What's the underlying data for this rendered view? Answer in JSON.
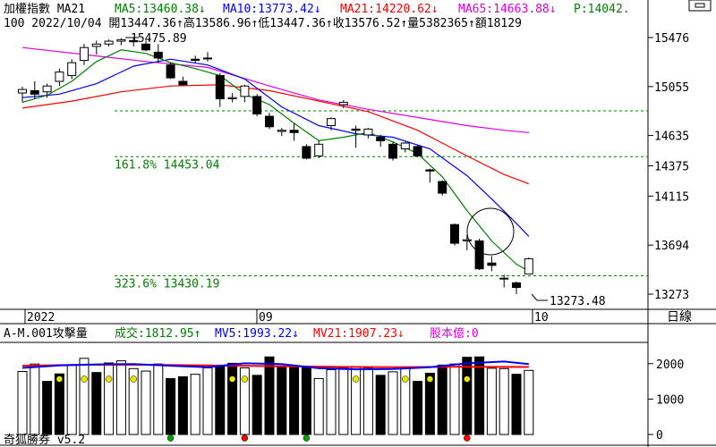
{
  "header": {
    "title": "加權指數 MA21",
    "ma5": "MA5:13460.38↓",
    "ma10": "MA10:13773.42↓",
    "ma21": "MA21:14220.62↓",
    "ma65": "MA65:14663.88↓",
    "p": "P:14042.",
    "line2": "100 2022/10/04 開13447.36↑高13586.96↑低13447.36↑收13576.52↑量5382365↑額18129"
  },
  "colors": {
    "ma5": "#008000",
    "ma10": "#0000ff",
    "ma21": "#ff0000",
    "ma65": "#e000e0",
    "fib": "#008000",
    "vol_ma5": "#0000ff",
    "vol_ma21": "#ff0000",
    "label": "#c00000"
  },
  "price_panel": {
    "annotations": {
      "high": "15475.89",
      "low": "13273.48"
    },
    "fib_levels": [
      {
        "label": "161.8% 14453.04",
        "value": 14453.04
      },
      {
        "label": "323.6% 13430.19",
        "value": 13430.19
      }
    ],
    "x_labels": [
      "2022",
      "09",
      "10"
    ],
    "timeframe": "日線"
  },
  "volume_panel": {
    "title": "A-M.001攻擊量",
    "vol": "成交:1812.95↑",
    "mv5": "MV5:1993.22↓",
    "mv21": "MV21:1907.23↓",
    "shares": "股本億:0",
    "version": "奇狐勝券 v5.2"
  },
  "chart_data": {
    "type": "candlestick",
    "y_ticks": [
      15476,
      15055,
      14635,
      14375,
      14115,
      13694,
      13273
    ],
    "volume_ticks": [
      2000,
      1000,
      0
    ],
    "volume_ylim": [
      0,
      2600
    ],
    "candles": [
      {
        "o": 15000,
        "h": 15055,
        "l": 14920,
        "c": 15030
      },
      {
        "o": 15020,
        "h": 15100,
        "l": 14950,
        "c": 14990
      },
      {
        "o": 15010,
        "h": 15080,
        "l": 14960,
        "c": 15060
      },
      {
        "o": 15100,
        "h": 15210,
        "l": 15060,
        "c": 15180
      },
      {
        "o": 15150,
        "h": 15290,
        "l": 15120,
        "c": 15260
      },
      {
        "o": 15280,
        "h": 15420,
        "l": 15240,
        "c": 15390
      },
      {
        "o": 15400,
        "h": 15450,
        "l": 15330,
        "c": 15420
      },
      {
        "o": 15420,
        "h": 15460,
        "l": 15400,
        "c": 15445
      },
      {
        "o": 15445,
        "h": 15470,
        "l": 15410,
        "c": 15458
      },
      {
        "o": 15450,
        "h": 15476,
        "l": 15400,
        "c": 15440
      },
      {
        "o": 15420,
        "h": 15450,
        "l": 15360,
        "c": 15370
      },
      {
        "o": 15350,
        "h": 15420,
        "l": 15260,
        "c": 15300
      },
      {
        "o": 15240,
        "h": 15260,
        "l": 15120,
        "c": 15130
      },
      {
        "o": 15100,
        "h": 15140,
        "l": 15060,
        "c": 15070
      },
      {
        "o": 15290,
        "h": 15320,
        "l": 15260,
        "c": 15280
      },
      {
        "o": 15300,
        "h": 15350,
        "l": 15270,
        "c": 15300
      },
      {
        "o": 15150,
        "h": 15170,
        "l": 14880,
        "c": 14950
      },
      {
        "o": 14950,
        "h": 15000,
        "l": 14920,
        "c": 14960
      },
      {
        "o": 14970,
        "h": 15070,
        "l": 14920,
        "c": 15060
      },
      {
        "o": 14970,
        "h": 14990,
        "l": 14800,
        "c": 14820
      },
      {
        "o": 14800,
        "h": 14830,
        "l": 14690,
        "c": 14710
      },
      {
        "o": 14670,
        "h": 14700,
        "l": 14630,
        "c": 14680
      },
      {
        "o": 14680,
        "h": 14740,
        "l": 14590,
        "c": 14660
      },
      {
        "o": 14540,
        "h": 14560,
        "l": 14430,
        "c": 14440
      },
      {
        "o": 14460,
        "h": 14590,
        "l": 14440,
        "c": 14560
      },
      {
        "o": 14720,
        "h": 14790,
        "l": 14680,
        "c": 14780
      },
      {
        "o": 14900,
        "h": 14940,
        "l": 14870,
        "c": 14920
      },
      {
        "o": 14690,
        "h": 14720,
        "l": 14530,
        "c": 14680
      },
      {
        "o": 14640,
        "h": 14700,
        "l": 14610,
        "c": 14690
      },
      {
        "o": 14620,
        "h": 14640,
        "l": 14540,
        "c": 14590
      },
      {
        "o": 14560,
        "h": 14580,
        "l": 14420,
        "c": 14440
      },
      {
        "o": 14520,
        "h": 14580,
        "l": 14490,
        "c": 14570
      },
      {
        "o": 14540,
        "h": 14550,
        "l": 14450,
        "c": 14460
      },
      {
        "o": 14340,
        "h": 14350,
        "l": 14230,
        "c": 14330
      },
      {
        "o": 14240,
        "h": 14250,
        "l": 14120,
        "c": 14140
      },
      {
        "o": 13870,
        "h": 13880,
        "l": 13690,
        "c": 13710
      },
      {
        "o": 13730,
        "h": 13780,
        "l": 13650,
        "c": 13740
      },
      {
        "o": 13730,
        "h": 13750,
        "l": 13480,
        "c": 13490
      },
      {
        "o": 13540,
        "h": 13600,
        "l": 13470,
        "c": 13520
      },
      {
        "o": 13410,
        "h": 13440,
        "l": 13330,
        "c": 13405
      },
      {
        "o": 13370,
        "h": 13380,
        "l": 13273,
        "c": 13330
      },
      {
        "o": 13447,
        "h": 13587,
        "l": 13447,
        "c": 13577
      }
    ],
    "ma5": [
      {
        "i": 0,
        "v": 14920
      },
      {
        "i": 2,
        "v": 14980
      },
      {
        "i": 4,
        "v": 15100
      },
      {
        "i": 6,
        "v": 15270
      },
      {
        "i": 8,
        "v": 15370
      },
      {
        "i": 10,
        "v": 15340
      },
      {
        "i": 12,
        "v": 15260
      },
      {
        "i": 14,
        "v": 15210
      },
      {
        "i": 16,
        "v": 15150
      },
      {
        "i": 18,
        "v": 14990
      },
      {
        "i": 20,
        "v": 14900
      },
      {
        "i": 22,
        "v": 14740
      },
      {
        "i": 24,
        "v": 14590
      },
      {
        "i": 26,
        "v": 14620
      },
      {
        "i": 28,
        "v": 14660
      },
      {
        "i": 30,
        "v": 14580
      },
      {
        "i": 32,
        "v": 14480
      },
      {
        "i": 34,
        "v": 14280
      },
      {
        "i": 36,
        "v": 13990
      },
      {
        "i": 38,
        "v": 13730
      },
      {
        "i": 40,
        "v": 13530
      },
      {
        "i": 41,
        "v": 13470
      }
    ],
    "ma10": [
      {
        "i": 0,
        "v": 14960
      },
      {
        "i": 3,
        "v": 14990
      },
      {
        "i": 6,
        "v": 15080
      },
      {
        "i": 9,
        "v": 15230
      },
      {
        "i": 12,
        "v": 15290
      },
      {
        "i": 15,
        "v": 15240
      },
      {
        "i": 18,
        "v": 15120
      },
      {
        "i": 21,
        "v": 14880
      },
      {
        "i": 24,
        "v": 14720
      },
      {
        "i": 27,
        "v": 14650
      },
      {
        "i": 30,
        "v": 14620
      },
      {
        "i": 33,
        "v": 14520
      },
      {
        "i": 36,
        "v": 14290
      },
      {
        "i": 38,
        "v": 14090
      },
      {
        "i": 40,
        "v": 13880
      },
      {
        "i": 41,
        "v": 13770
      }
    ],
    "ma21": [
      {
        "i": 0,
        "v": 14870
      },
      {
        "i": 4,
        "v": 14930
      },
      {
        "i": 8,
        "v": 15010
      },
      {
        "i": 12,
        "v": 15060
      },
      {
        "i": 16,
        "v": 15070
      },
      {
        "i": 20,
        "v": 15020
      },
      {
        "i": 24,
        "v": 14930
      },
      {
        "i": 28,
        "v": 14840
      },
      {
        "i": 32,
        "v": 14680
      },
      {
        "i": 36,
        "v": 14460
      },
      {
        "i": 39,
        "v": 14300
      },
      {
        "i": 41,
        "v": 14220
      }
    ],
    "ma65": [
      {
        "i": 0,
        "v": 15390
      },
      {
        "i": 5,
        "v": 15330
      },
      {
        "i": 10,
        "v": 15270
      },
      {
        "i": 15,
        "v": 15220
      },
      {
        "i": 20,
        "v": 15060
      },
      {
        "i": 24,
        "v": 14940
      },
      {
        "i": 28,
        "v": 14860
      },
      {
        "i": 32,
        "v": 14790
      },
      {
        "i": 36,
        "v": 14720
      },
      {
        "i": 39,
        "v": 14680
      },
      {
        "i": 41,
        "v": 14660
      }
    ],
    "volume": [
      1780,
      1990,
      1500,
      1710,
      1970,
      2150,
      1750,
      2020,
      2080,
      1860,
      1790,
      1990,
      1580,
      1630,
      1700,
      1880,
      1940,
      2010,
      1880,
      1670,
      2190,
      1920,
      1900,
      1880,
      1580,
      1830,
      1880,
      1900,
      1880,
      1670,
      1770,
      1880,
      1500,
      1730,
      1960,
      1990,
      2180,
      2190,
      1870,
      1860,
      1700,
      1810
    ],
    "volume_filled": [
      false,
      false,
      true,
      true,
      false,
      false,
      true,
      false,
      false,
      false,
      false,
      false,
      true,
      true,
      false,
      false,
      true,
      true,
      false,
      true,
      true,
      true,
      true,
      true,
      false,
      false,
      false,
      false,
      false,
      true,
      false,
      false,
      true,
      true,
      true,
      false,
      true,
      true,
      false,
      false,
      true,
      false
    ],
    "vol_ma5": [
      {
        "i": 0,
        "v": 1880
      },
      {
        "i": 3,
        "v": 1950
      },
      {
        "i": 6,
        "v": 1980
      },
      {
        "i": 9,
        "v": 1990
      },
      {
        "i": 12,
        "v": 1940
      },
      {
        "i": 15,
        "v": 1900
      },
      {
        "i": 18,
        "v": 2010
      },
      {
        "i": 21,
        "v": 1990
      },
      {
        "i": 24,
        "v": 1870
      },
      {
        "i": 27,
        "v": 1840
      },
      {
        "i": 30,
        "v": 1850
      },
      {
        "i": 33,
        "v": 1900
      },
      {
        "i": 36,
        "v": 2010
      },
      {
        "i": 39,
        "v": 2060
      },
      {
        "i": 41,
        "v": 1990
      }
    ],
    "vol_ma21": [
      {
        "i": 0,
        "v": 1940
      },
      {
        "i": 5,
        "v": 1970
      },
      {
        "i": 10,
        "v": 1970
      },
      {
        "i": 15,
        "v": 1950
      },
      {
        "i": 20,
        "v": 1930
      },
      {
        "i": 25,
        "v": 1910
      },
      {
        "i": 30,
        "v": 1900
      },
      {
        "i": 35,
        "v": 1910
      },
      {
        "i": 41,
        "v": 1907
      }
    ],
    "vol_markers": [
      {
        "i": 3,
        "color": "#e6e600",
        "row": "mid"
      },
      {
        "i": 5,
        "color": "#e6e600",
        "row": "mid"
      },
      {
        "i": 7,
        "color": "#e6e600",
        "row": "mid"
      },
      {
        "i": 9,
        "color": "#e6e600",
        "row": "mid"
      },
      {
        "i": 17,
        "color": "#e6e600",
        "row": "mid"
      },
      {
        "i": 18,
        "color": "#e6e600",
        "row": "mid"
      },
      {
        "i": 27,
        "color": "#e6e600",
        "row": "mid"
      },
      {
        "i": 31,
        "color": "#e6e600",
        "row": "mid"
      },
      {
        "i": 33,
        "color": "#e6e600",
        "row": "mid"
      },
      {
        "i": 36,
        "color": "#e6e600",
        "row": "mid"
      },
      {
        "i": 12,
        "color": "#00a000",
        "row": "bottom"
      },
      {
        "i": 18,
        "color": "#ff0000",
        "row": "bottom"
      },
      {
        "i": 23,
        "color": "#00a000",
        "row": "bottom"
      },
      {
        "i": 36,
        "color": "#ff0000",
        "row": "bottom"
      }
    ]
  }
}
